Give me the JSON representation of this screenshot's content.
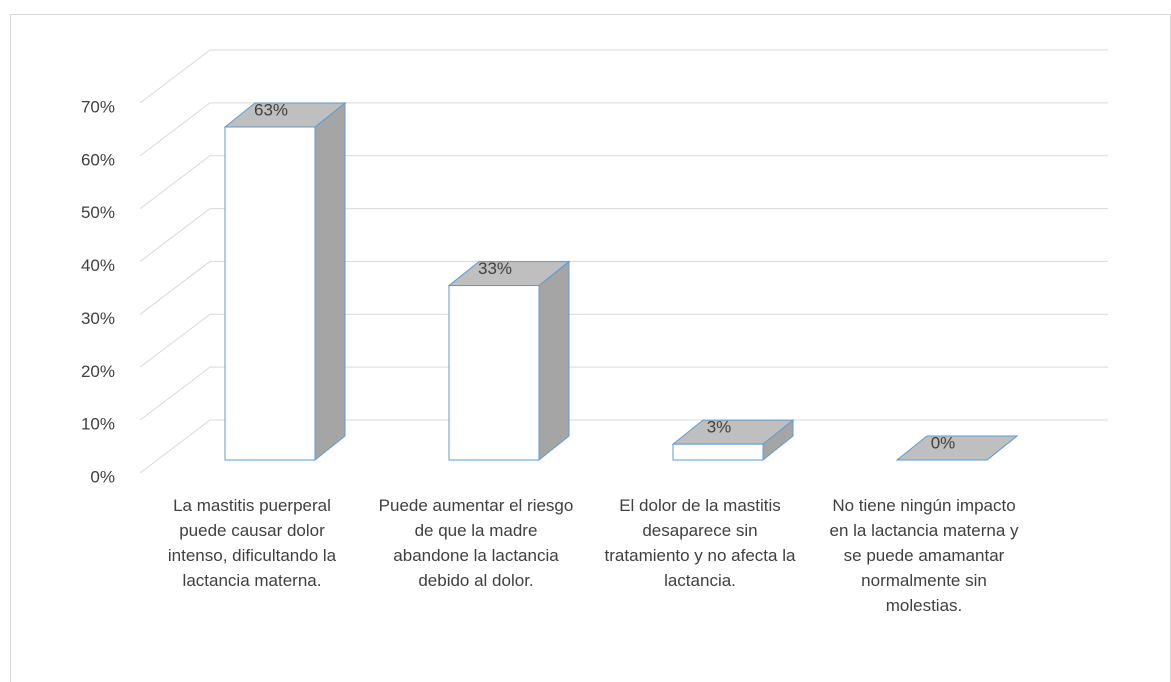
{
  "chart_data": {
    "type": "bar3d",
    "categories": [
      "La mastitis puerperal puede causar dolor intenso, dificultando la lactancia materna.",
      "Puede aumentar el riesgo de que la madre abandone la lactancia debido al dolor.",
      "El dolor de la mastitis desaparece sin tratamiento y no afecta la lactancia.",
      "No tiene ningún impacto en la lactancia materna y se puede amamantar normalmente sin molestias."
    ],
    "values": [
      63,
      33,
      3,
      0
    ],
    "value_labels": [
      "63%",
      "33%",
      "3%",
      "0%"
    ],
    "ylim": [
      0,
      70
    ],
    "yticks": [
      {
        "value": 0,
        "label": "0%"
      },
      {
        "value": 10,
        "label": "10%"
      },
      {
        "value": 20,
        "label": "20%"
      },
      {
        "value": 30,
        "label": "30%"
      },
      {
        "value": 40,
        "label": "40%"
      },
      {
        "value": 50,
        "label": "50%"
      },
      {
        "value": 60,
        "label": "60%"
      },
      {
        "value": 70,
        "label": "70%"
      }
    ],
    "grid": true,
    "color": "#ffffff"
  }
}
